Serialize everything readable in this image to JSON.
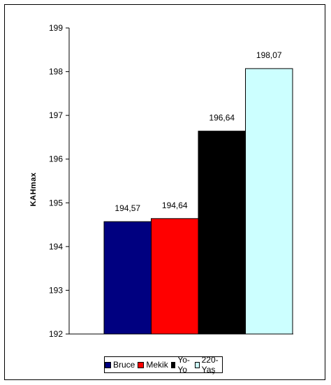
{
  "chart_data": {
    "type": "bar",
    "categories": [
      "Bruce",
      "Mekik",
      "Yo-Yo",
      "220-Yaş"
    ],
    "values": [
      194.57,
      194.64,
      196.64,
      198.07
    ],
    "data_labels": [
      "194,57",
      "194,64",
      "196,64",
      "198,07"
    ],
    "colors": [
      "#000080",
      "#ff0000",
      "#000000",
      "#ccffff"
    ],
    "title": "",
    "xlabel": "",
    "ylabel": "KAHmax",
    "ylim": [
      192,
      199
    ],
    "yticks": [
      "192",
      "193",
      "194",
      "195",
      "196",
      "197",
      "198",
      "199"
    ],
    "grid": false,
    "legend": "bottom"
  }
}
